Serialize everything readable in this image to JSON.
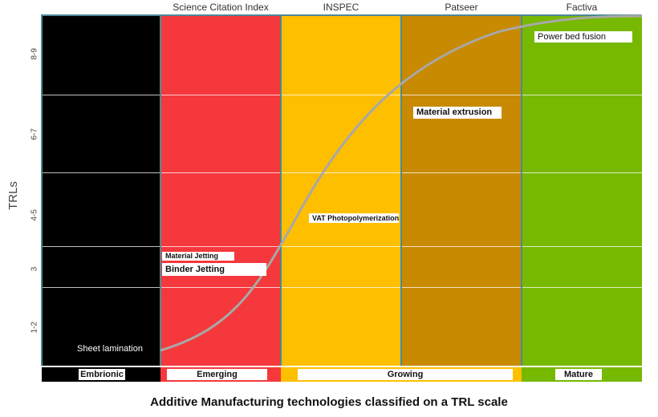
{
  "columns": [
    {
      "label": "",
      "color": "#000000"
    },
    {
      "label": "Science Citation Index",
      "color": "#f5383c"
    },
    {
      "label": "INSPEC",
      "color": "#fdbf00"
    },
    {
      "label": "Patseer",
      "color": "#c78a00"
    },
    {
      "label": "Factiva",
      "color": "#77b800"
    }
  ],
  "y_axis": {
    "label": "TRLs",
    "ticks": [
      "1-2",
      "3",
      "4-5",
      "6-7",
      "8-9"
    ]
  },
  "technologies": {
    "power_bed_fusion": "Power bed fusion",
    "material_extrusion": "Material extrusion",
    "vat_photopolymerization": "VAT Photopolymerization",
    "material_jetting": "Material Jetting",
    "binder_jetting": "Binder Jetting",
    "sheet_lamination": "Sheet lamination"
  },
  "stages": [
    {
      "label": "Embrionic",
      "color": "#000000"
    },
    {
      "label": "Emerging",
      "color": "#f5383c"
    },
    {
      "label": "Growing",
      "color": "#fdbf00"
    },
    {
      "label": "Mature",
      "color": "#77b800"
    }
  ],
  "curve_color": "#a8a8a8",
  "caption": "Additive Manufacturing technologies classified on a TRL scale"
}
